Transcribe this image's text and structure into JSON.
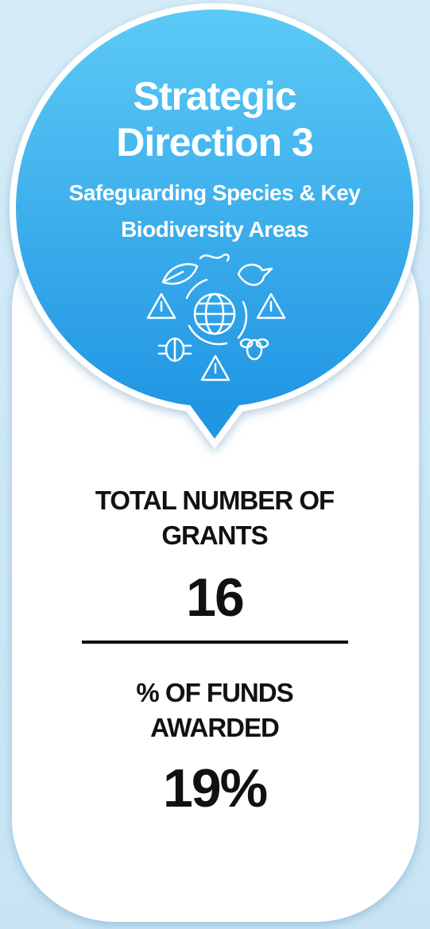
{
  "header": {
    "title": "Strategic Direction 3",
    "subtitle": "Safeguarding Species & Key Biodiversity Areas"
  },
  "stats": [
    {
      "label": "TOTAL NUMBER OF GRANTS",
      "value": "16"
    },
    {
      "label": "% OF FUNDS AWARDED",
      "value": "19%"
    }
  ]
}
